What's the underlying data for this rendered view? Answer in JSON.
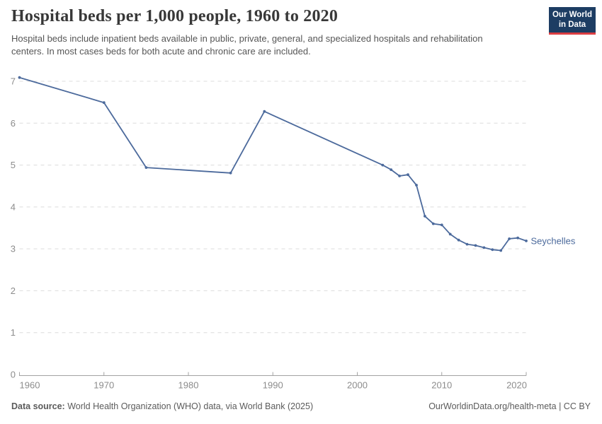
{
  "header": {
    "title": "Hospital beds per 1,000 people, 1960 to 2020",
    "subtitle": "Hospital beds include inpatient beds available in public, private, general, and specialized hospitals and rehabilitation centers. In most cases beds for both acute and chronic care are included.",
    "logo": {
      "line1": "Our World",
      "line2": "in Data",
      "bg_color": "#1d3d63",
      "accent_color": "#dc3e42"
    }
  },
  "chart_data": {
    "type": "line",
    "title": "Hospital beds per 1,000 people, 1960 to 2020",
    "xlabel": "",
    "ylabel": "",
    "xlim": [
      1960,
      2020
    ],
    "ylim": [
      0,
      7.1
    ],
    "x_ticks": [
      1960,
      1970,
      1980,
      1990,
      2000,
      2010,
      2020
    ],
    "y_ticks": [
      0,
      1,
      2,
      3,
      4,
      5,
      6,
      7
    ],
    "grid": "horizontal-dashed",
    "legend_position": "end-of-line-label",
    "series": [
      {
        "name": "Seychelles",
        "color": "#4C6A9C",
        "points": [
          [
            1960,
            7.09
          ],
          [
            1970,
            6.49
          ],
          [
            1975,
            4.94
          ],
          [
            1985,
            4.81
          ],
          [
            1989,
            6.28
          ],
          [
            2003,
            5.0
          ],
          [
            2004,
            4.89
          ],
          [
            2005,
            4.74
          ],
          [
            2006,
            4.77
          ],
          [
            2007,
            4.52
          ],
          [
            2008,
            3.78
          ],
          [
            2009,
            3.6
          ],
          [
            2010,
            3.57
          ],
          [
            2011,
            3.35
          ],
          [
            2012,
            3.21
          ],
          [
            2013,
            3.11
          ],
          [
            2014,
            3.08
          ],
          [
            2015,
            3.03
          ],
          [
            2016,
            2.98
          ],
          [
            2017,
            2.96
          ],
          [
            2018,
            3.24
          ],
          [
            2019,
            3.26
          ],
          [
            2020,
            3.19
          ]
        ]
      }
    ]
  },
  "colors": {
    "grid": "#dcdcdc",
    "axis_line": "#a3a3a3",
    "tick_label": "#8c8c8c",
    "line": "#4C6A9C"
  },
  "footer": {
    "source_label": "Data source:",
    "source_text": " World Health Organization (WHO) data, via World Bank (2025)",
    "right_text": "OurWorldinData.org/health-meta | CC BY"
  }
}
